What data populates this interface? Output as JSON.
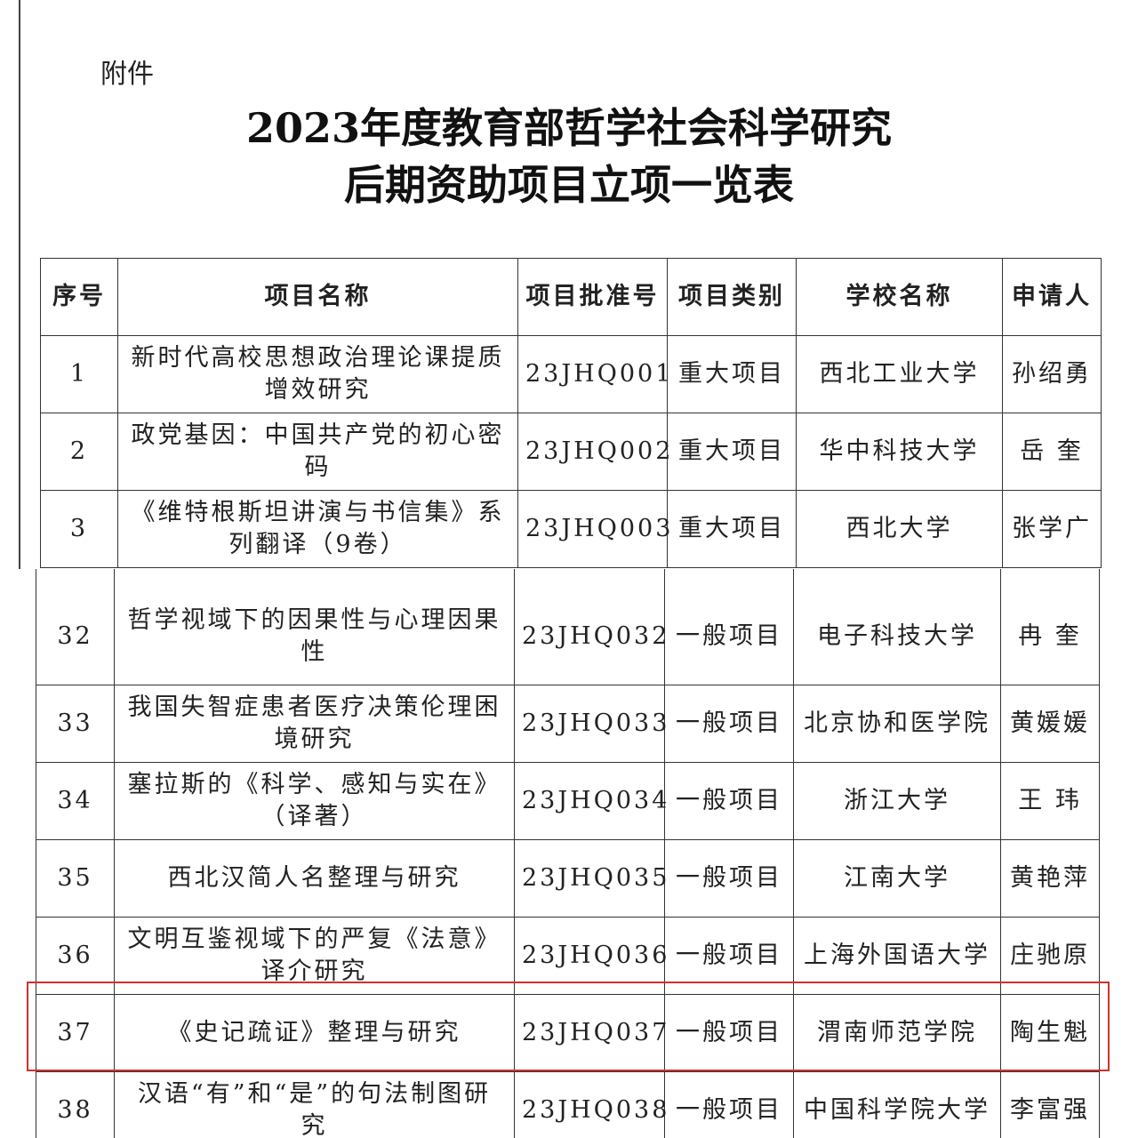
{
  "header": {
    "attachment": "附件",
    "title_lines": [
      "2023年度教育部哲学社会科学研究",
      "后期资助项目立项一览表"
    ]
  },
  "table": {
    "columns": [
      "序号",
      "项目名称",
      "项目批准号",
      "项目类别",
      "学校名称",
      "申请人"
    ],
    "rows": [
      [
        "1",
        "新时代高校思想政治理论课提质增效研究",
        "23JHQ001",
        "重大项目",
        "西北工业大学",
        "孙绍勇"
      ],
      [
        "2",
        "政党基因：中国共产党的初心密码",
        "23JHQ002",
        "重大项目",
        "华中科技大学",
        "岳 奎"
      ],
      [
        "3",
        "《维特根斯坦讲演与书信集》系列翻译（9卷）",
        "23JHQ003",
        "重大项目",
        "西北大学",
        "张学广"
      ],
      [
        "32",
        "哲学视域下的因果性与心理因果性",
        "23JHQ032",
        "一般项目",
        "电子科技大学",
        "冉 奎"
      ],
      [
        "33",
        "我国失智症患者医疗决策伦理困境研究",
        "23JHQ033",
        "一般项目",
        "北京协和医学院",
        "黄媛媛"
      ],
      [
        "34",
        "塞拉斯的《科学、感知与实在》（译著）",
        "23JHQ034",
        "一般项目",
        "浙江大学",
        "王 玮"
      ],
      [
        "35",
        "西北汉简人名整理与研究",
        "23JHQ035",
        "一般项目",
        "江南大学",
        "黄艳萍"
      ],
      [
        "36",
        "文明互鉴视域下的严复《法意》译介研究",
        "23JHQ036",
        "一般项目",
        "上海外国语大学",
        "庄驰原"
      ],
      [
        "37",
        "《史记疏证》整理与研究",
        "23JHQ037",
        "一般项目",
        "渭南师范学院",
        "陶生魁"
      ],
      [
        "38",
        "汉语“有”和“是”的句法制图研究",
        "23JHQ038",
        "一般项目",
        "中国科学院大学",
        "李富强"
      ]
    ]
  }
}
